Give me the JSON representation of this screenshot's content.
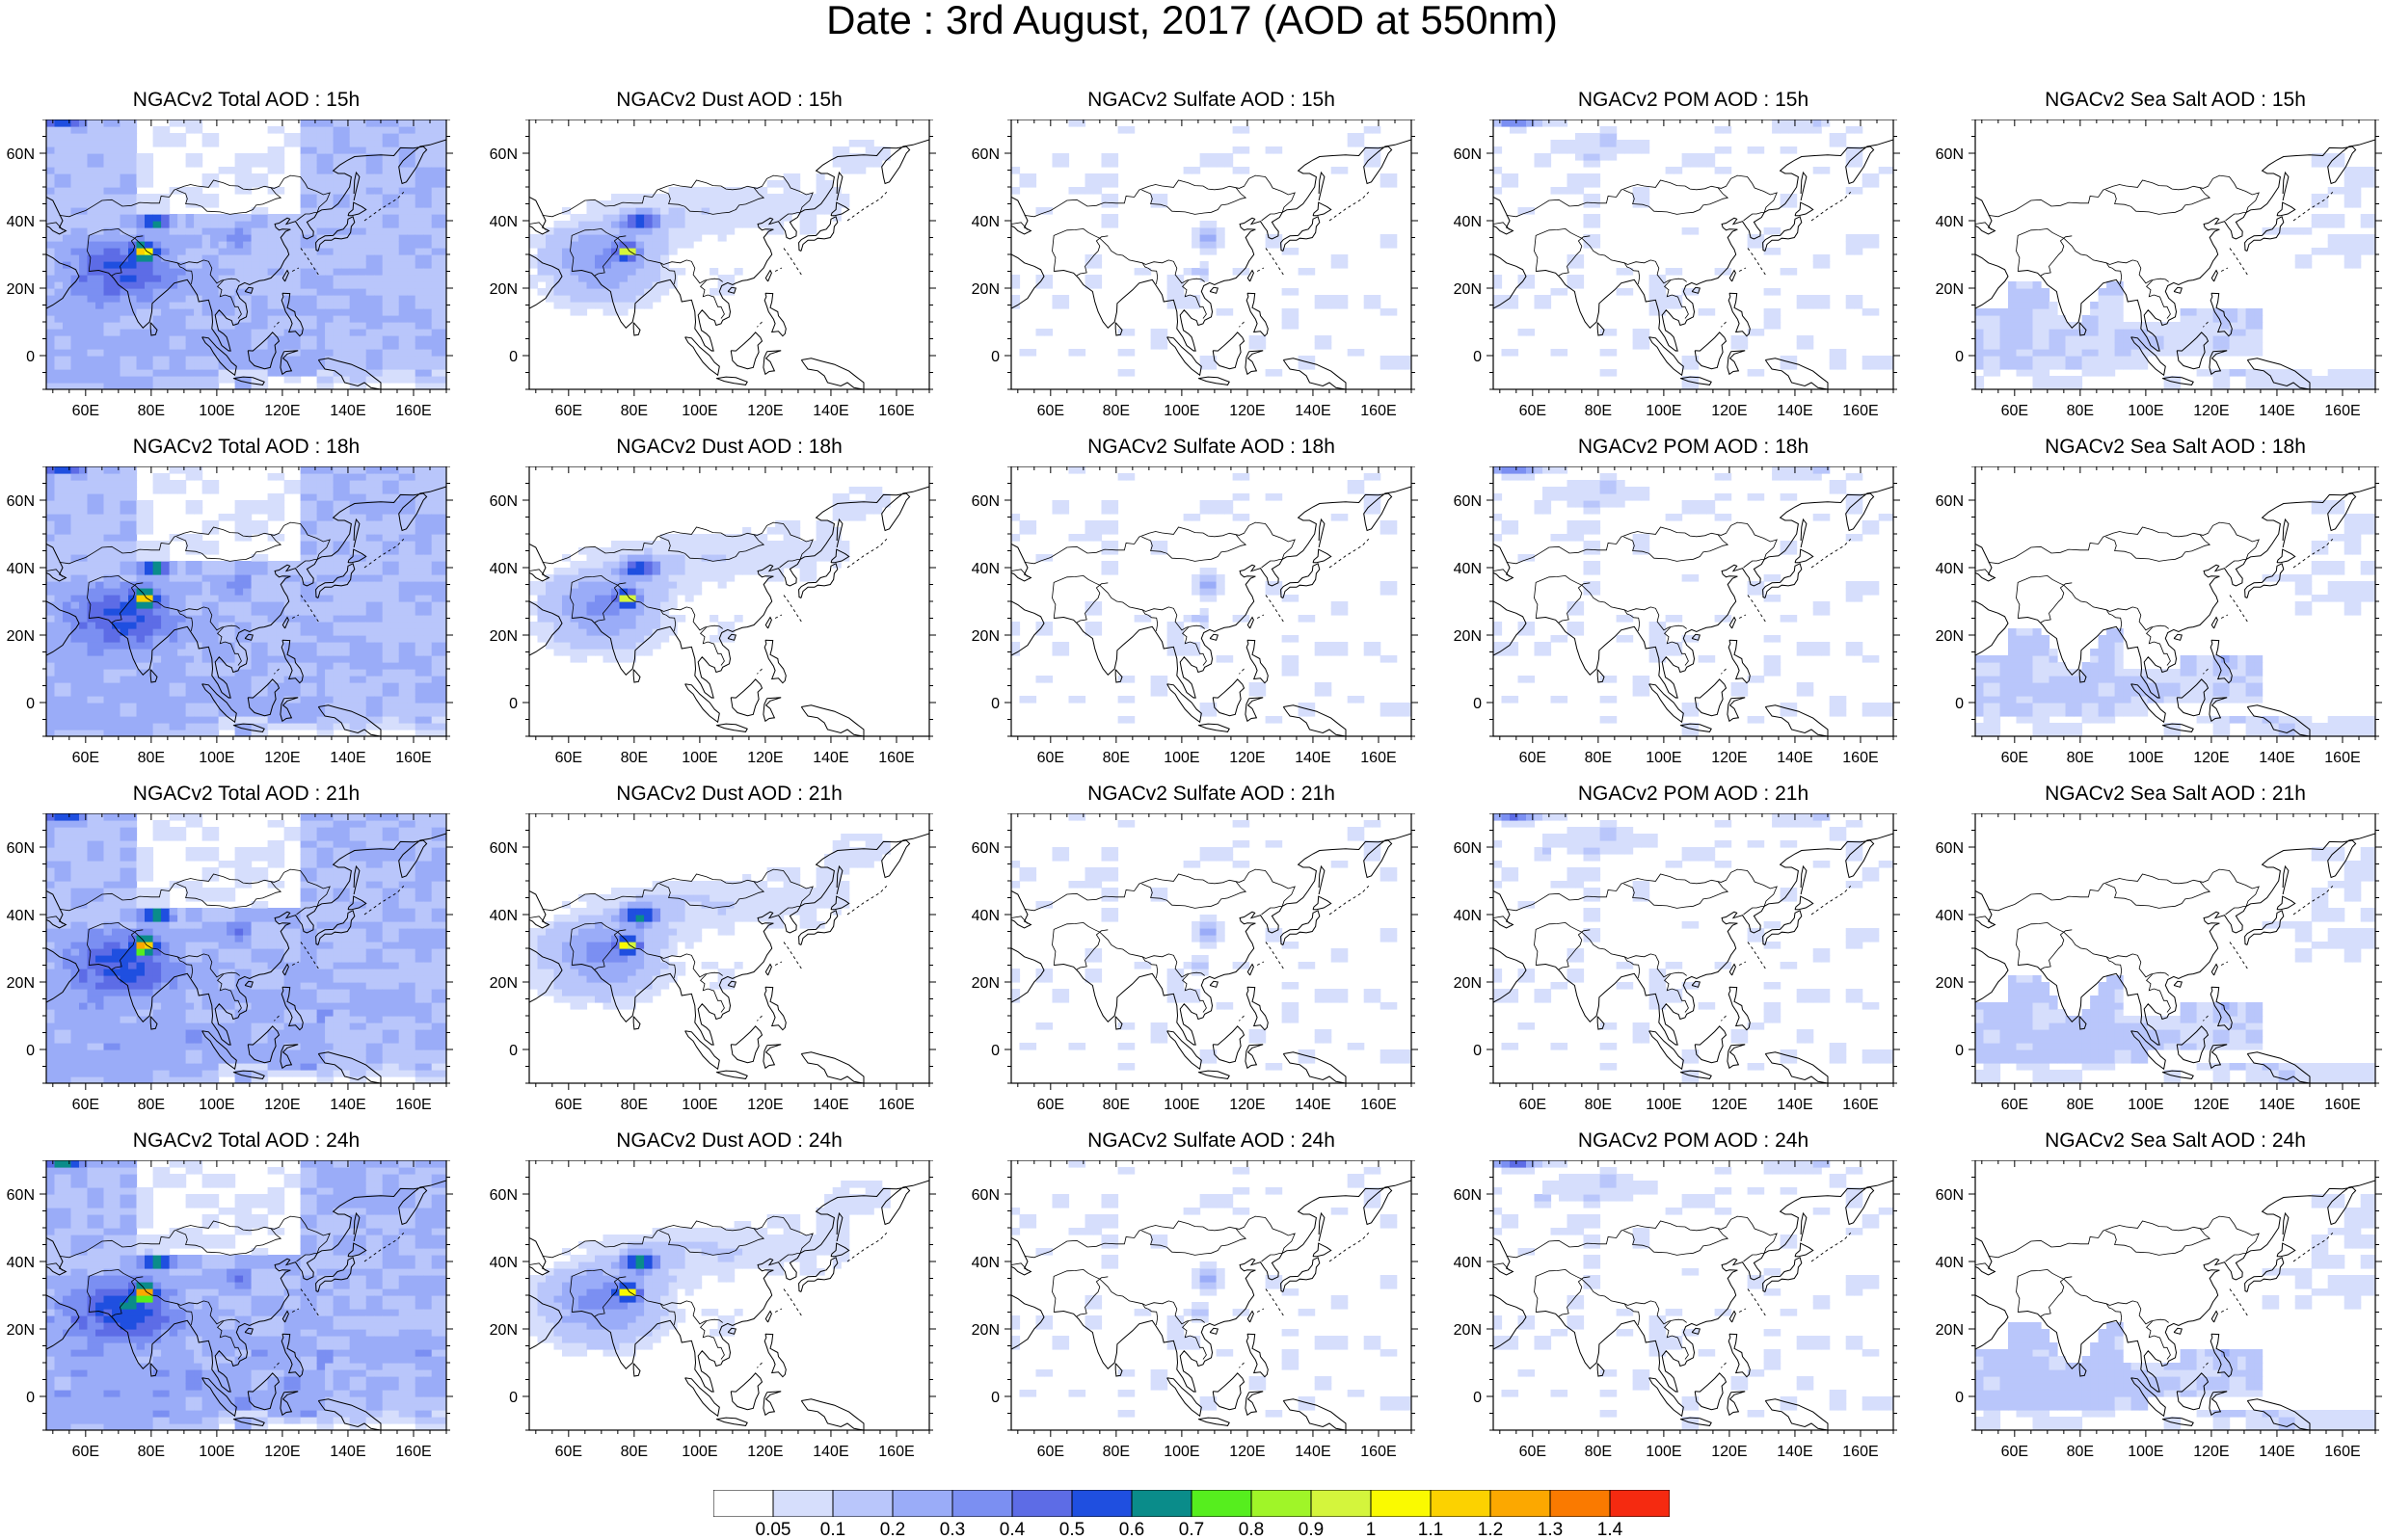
{
  "title": "Date : 3rd August, 2017 (AOD at 550nm)",
  "colors": {
    "scale": [
      "#ffffff",
      "#d6defc",
      "#b9c6fb",
      "#9aacf8",
      "#7b8ff2",
      "#5d6ce6",
      "#1f4fe0",
      "#0a8c8a",
      "#56ee1e",
      "#a0f528",
      "#d4f53c",
      "#fafa00",
      "#fcd200",
      "#fca800",
      "#fa7a00",
      "#f52a10"
    ],
    "coast": "#000000"
  },
  "panel_titles": [
    [
      "NGACv2 Total AOD : 15h",
      "NGACv2 Dust AOD : 15h",
      "NGACv2 Sulfate AOD : 15h",
      "NGACv2 POM AOD : 15h",
      "NGACv2 Sea Salt AOD : 15h"
    ],
    [
      "NGACv2 Total AOD : 18h",
      "NGACv2 Dust AOD : 18h",
      "NGACv2 Sulfate AOD : 18h",
      "NGACv2 POM AOD : 18h",
      "NGACv2 Sea Salt AOD : 18h"
    ],
    [
      "NGACv2 Total AOD : 21h",
      "NGACv2 Dust AOD : 21h",
      "NGACv2 Sulfate AOD : 21h",
      "NGACv2 POM AOD : 21h",
      "NGACv2 Sea Salt AOD : 21h"
    ],
    [
      "NGACv2 Total AOD : 24h",
      "NGACv2 Dust AOD : 24h",
      "NGACv2 Sulfate AOD : 24h",
      "NGACv2 POM AOD : 24h",
      "NGACv2 Sea Salt  AOD : 24h"
    ]
  ],
  "map_axes": {
    "lon_ticks": [
      "60E",
      "80E",
      "100E",
      "120E",
      "140E",
      "160E"
    ],
    "lat_ticks": [
      "60N",
      "40N",
      "20N",
      "0"
    ]
  },
  "colorbar_labels": [
    "0.05",
    "0.1",
    "0.2",
    "0.3",
    "0.4",
    "0.5",
    "0.6",
    "0.7",
    "0.8",
    "0.9",
    "1",
    "1.1",
    "1.2",
    "1.3",
    "1.4"
  ]
}
